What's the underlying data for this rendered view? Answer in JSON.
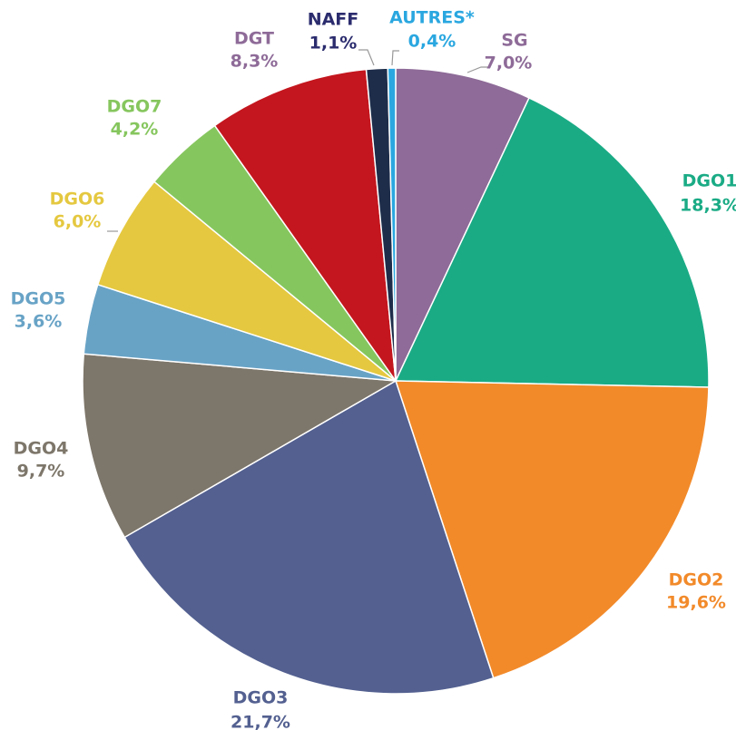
{
  "chart_data": {
    "type": "pie",
    "categories": [
      "SG",
      "DGO1",
      "DGO2",
      "DGO3",
      "DGO4",
      "DGO5",
      "DGO6",
      "DGO7",
      "DGT",
      "NAFF",
      "AUTRES*"
    ],
    "values": [
      7.0,
      18.3,
      19.6,
      21.7,
      9.7,
      3.6,
      6.0,
      4.2,
      8.3,
      1.1,
      0.4
    ],
    "value_labels": [
      "7,0%",
      "18,3%",
      "19,6%",
      "21,7%",
      "9,7%",
      "3,6%",
      "6,0%",
      "4,2%",
      "8,3%",
      "1,1%",
      "0,4%"
    ],
    "colors": [
      "#8e6b98",
      "#1aab85",
      "#f28a2a",
      "#536090",
      "#7d766a",
      "#68a3c6",
      "#e5c840",
      "#86c65e",
      "#c4161e",
      "#1e2d4a",
      "#2aa7e0"
    ],
    "label_colors": [
      "#8e6b98",
      "#1aab85",
      "#f28a2a",
      "#536090",
      "#7d766a",
      "#68a3c6",
      "#e5c840",
      "#86c65e",
      "#8e6b98",
      "#2b2c6e",
      "#2aa7e0"
    ]
  }
}
